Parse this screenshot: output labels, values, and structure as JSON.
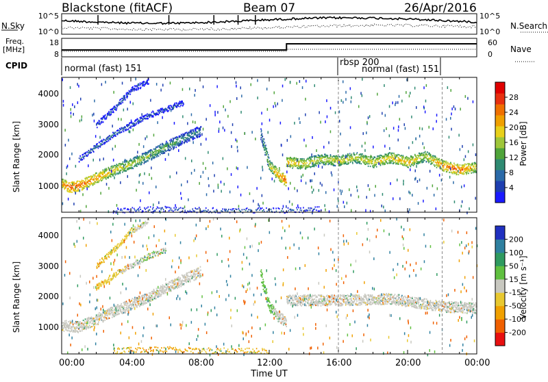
{
  "header": {
    "station": "Blackstone (fitACF)",
    "beam": "Beam 07",
    "date": "26/Apr/2016"
  },
  "strip": {
    "nsky_label": "N.Sky",
    "nsky_ticks": [
      "10^5",
      "10^0"
    ],
    "nsearch_label": "N.Search",
    "nsearch_ticks": [
      "10^5",
      "10^0"
    ],
    "freq_label_1": "Freq.",
    "freq_label_2": "[MHz]",
    "freq_ticks": [
      "18",
      "8"
    ],
    "nave_label": "Nave",
    "nave_ticks": [
      "60",
      "0"
    ],
    "cpid_label": "CPID",
    "cpid_segments": [
      {
        "label": "normal (fast) 151",
        "start_hour": 0,
        "end_hour": 16
      },
      {
        "label": "rbsp 200",
        "start_hour": 16,
        "end_hour": 16
      },
      {
        "label": "normal (fast) 151",
        "start_hour": 16,
        "end_hour": 22
      }
    ]
  },
  "axes": {
    "xlabel": "Time UT",
    "x_ticks": [
      "00:00",
      "04:00",
      "08:00",
      "12:00",
      "16:00",
      "20:00",
      "00:00"
    ],
    "ylabel": "Slant Range [km]",
    "y_ticks": [
      "1000",
      "2000",
      "3000",
      "4000"
    ]
  },
  "power_colorbar": {
    "title": "Power [dB]",
    "ticks": [
      "4",
      "8",
      "12",
      "16",
      "20",
      "24",
      "28"
    ],
    "colors": [
      "#1a1aff",
      "#1e3fb0",
      "#2b6aa8",
      "#2f8a72",
      "#4fa43a",
      "#9fc63a",
      "#e8d01a",
      "#f0a000",
      "#f07000",
      "#e83010",
      "#e00000"
    ]
  },
  "velocity_colorbar": {
    "title": "Velocity [m s⁻¹]",
    "ticks": [
      "200",
      "100",
      "50",
      "15",
      "-15",
      "-50",
      "-100",
      "-200"
    ],
    "colors": [
      "#2030c0",
      "#2f80a0",
      "#2f9a60",
      "#60c040",
      "#c8c8c0",
      "#e8c830",
      "#f0a000",
      "#f06000",
      "#e81010"
    ]
  },
  "chart_data": [
    {
      "type": "heatmap",
      "title": "Power",
      "xlabel": "Time UT",
      "ylabel": "Slant Range [km]",
      "xlim": [
        0,
        24
      ],
      "ylim": [
        180,
        4500
      ],
      "colorbar": {
        "label": "Power [dB]",
        "range": [
          0,
          32
        ]
      },
      "scatter_bands": [
        {
          "name": "band_main",
          "points": [
            [
              0,
              1100,
              22
            ],
            [
              0.5,
              1000,
              28
            ],
            [
              1,
              1050,
              26
            ],
            [
              2,
              1300,
              24
            ],
            [
              3,
              1550,
              20
            ],
            [
              4,
              1750,
              18
            ],
            [
              5,
              2000,
              16
            ],
            [
              6,
              2300,
              14
            ],
            [
              7,
              2550,
              12
            ],
            [
              8,
              2800,
              10
            ]
          ]
        },
        {
          "name": "band_upper1",
          "points": [
            [
              1,
              1900,
              8
            ],
            [
              2,
              2300,
              10
            ],
            [
              3,
              2700,
              10
            ],
            [
              4,
              3000,
              8
            ],
            [
              5,
              3300,
              8
            ],
            [
              6,
              3500,
              6
            ],
            [
              7,
              3700,
              6
            ]
          ]
        },
        {
          "name": "band_upper2",
          "points": [
            [
              2,
              3000,
              6
            ],
            [
              3,
              3500,
              8
            ],
            [
              4,
              4100,
              6
            ],
            [
              5,
              4400,
              4
            ]
          ]
        },
        {
          "name": "band_noon",
          "points": [
            [
              11.5,
              2700,
              12
            ],
            [
              12,
              1700,
              18
            ],
            [
              12.5,
              1400,
              24
            ],
            [
              13,
              1200,
              26
            ]
          ]
        },
        {
          "name": "band_afternoon",
          "points": [
            [
              13,
              1800,
              22
            ],
            [
              14,
              1750,
              20
            ],
            [
              15,
              1900,
              18
            ],
            [
              16,
              1850,
              20
            ],
            [
              17,
              1950,
              18
            ],
            [
              18,
              1800,
              20
            ],
            [
              19,
              1950,
              20
            ],
            [
              20,
              1800,
              22
            ],
            [
              21,
              2000,
              18
            ],
            [
              22,
              1700,
              24
            ],
            [
              23,
              1550,
              26
            ],
            [
              24,
              1650,
              20
            ]
          ]
        },
        {
          "name": "near_range",
          "points": [
            [
              3,
              250,
              6
            ],
            [
              6,
              300,
              8
            ],
            [
              9,
              250,
              8
            ],
            [
              12,
              250,
              10
            ],
            [
              15,
              300,
              6
            ]
          ]
        }
      ]
    },
    {
      "type": "heatmap",
      "title": "Velocity",
      "xlabel": "Time UT",
      "ylabel": "Slant Range [km]",
      "xlim": [
        0,
        24
      ],
      "ylim": [
        180,
        4500
      ],
      "colorbar": {
        "label": "Velocity [m s⁻¹]",
        "range": [
          -200,
          200
        ]
      },
      "scatter_bands": [
        {
          "name": "band_main",
          "points": [
            [
              0,
              1100,
              0
            ],
            [
              1,
              1050,
              0
            ],
            [
              3,
              1550,
              0
            ],
            [
              5,
              2000,
              0
            ],
            [
              7,
              2550,
              0
            ],
            [
              8,
              2800,
              0
            ]
          ]
        },
        {
          "name": "band_upper1",
          "points": [
            [
              2,
              2300,
              -50
            ],
            [
              3,
              2700,
              -30
            ],
            [
              4,
              3000,
              0
            ],
            [
              5,
              3300,
              20
            ],
            [
              6,
              3500,
              0
            ]
          ]
        },
        {
          "name": "band_upper2",
          "points": [
            [
              2,
              3000,
              -50
            ],
            [
              3,
              3500,
              -40
            ],
            [
              4,
              4100,
              -20
            ],
            [
              5,
              4400,
              0
            ]
          ]
        },
        {
          "name": "band_noon",
          "points": [
            [
              11.5,
              2700,
              40
            ],
            [
              12,
              1700,
              30
            ],
            [
              12.5,
              1400,
              0
            ],
            [
              13,
              1200,
              0
            ]
          ]
        },
        {
          "name": "band_afternoon",
          "points": [
            [
              13,
              1900,
              0
            ],
            [
              16,
              1900,
              0
            ],
            [
              19,
              1950,
              0
            ],
            [
              22,
              1700,
              0
            ],
            [
              24,
              1650,
              0
            ]
          ]
        },
        {
          "name": "near_range",
          "points": [
            [
              3,
              300,
              -50
            ],
            [
              6,
              350,
              -60
            ],
            [
              9,
              300,
              -40
            ],
            [
              12,
              300,
              -50
            ]
          ]
        }
      ]
    }
  ]
}
